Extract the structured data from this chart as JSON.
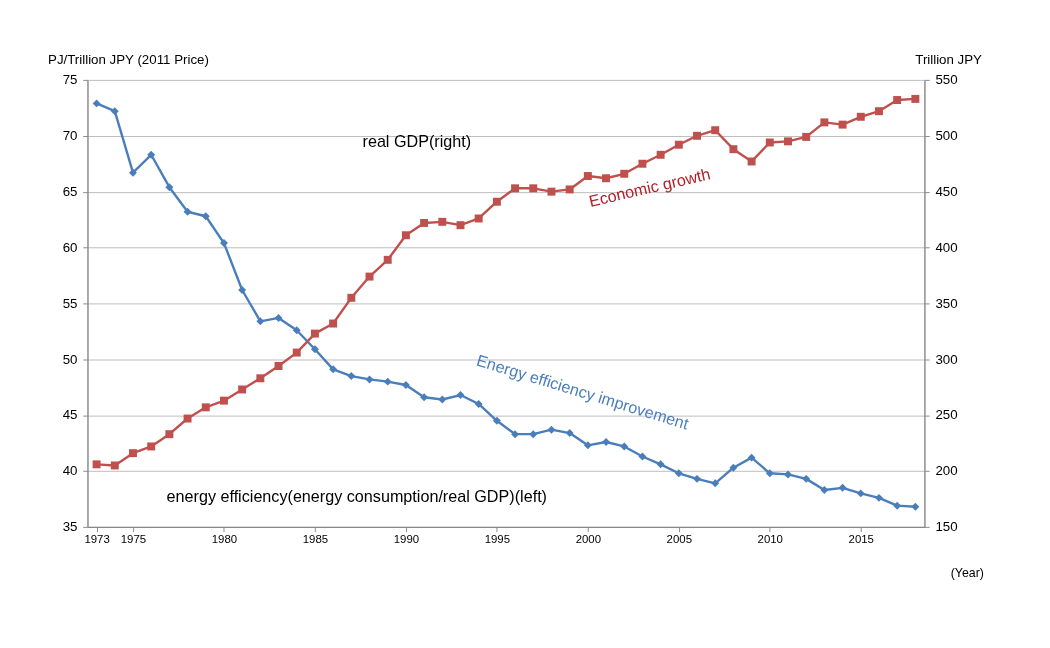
{
  "chart_data": {
    "type": "line",
    "ylabel": "PJ/Trillion JPY (2011 Price)",
    "y2label": "Trillion JPY",
    "xlabel": "(Year)",
    "x": [
      1973,
      1974,
      1975,
      1976,
      1977,
      1978,
      1979,
      1980,
      1981,
      1982,
      1983,
      1984,
      1985,
      1986,
      1987,
      1988,
      1989,
      1990,
      1991,
      1992,
      1993,
      1994,
      1995,
      1996,
      1997,
      1998,
      1999,
      2000,
      2001,
      2002,
      2003,
      2004,
      2005,
      2006,
      2007,
      2008,
      2009,
      2010,
      2011,
      2012,
      2013,
      2014,
      2015,
      2016,
      2017,
      2018
    ],
    "series": [
      {
        "color": "#4a7ebb",
        "marker": "diamond",
        "values": [
          72.9,
          72.2,
          66.7,
          68.3,
          65.4,
          63.2,
          62.8,
          60.4,
          56.2,
          53.4,
          53.7,
          52.6,
          50.9,
          49.1,
          48.5,
          48.2,
          48.0,
          47.7,
          46.6,
          46.4,
          46.8,
          46.0,
          44.5,
          43.3,
          43.3,
          43.7,
          43.4,
          42.3,
          42.6,
          42.2,
          41.3,
          40.6,
          39.8,
          39.3,
          38.9,
          40.3,
          41.2,
          39.8,
          39.7,
          39.3,
          38.3,
          38.5,
          38.0,
          37.6,
          36.9,
          36.8
        ]
      },
      {
        "color": "#c0504d",
        "marker": "square",
        "axis": "y2",
        "values": [
          206,
          205,
          216,
          222,
          233,
          247,
          257,
          263,
          273,
          283,
          294,
          306,
          323,
          332,
          355,
          374,
          389,
          411,
          422,
          423,
          420,
          426,
          441,
          453,
          453,
          450,
          452,
          464,
          462,
          466,
          475,
          483,
          492,
          500,
          505,
          488,
          477,
          494,
          495,
          499,
          512,
          510,
          517,
          522,
          532,
          533
        ]
      }
    ],
    "xlim": [
      1972.5,
      2018.5
    ],
    "xticks": [
      1973,
      1975,
      1980,
      1985,
      1990,
      1995,
      2000,
      2005,
      2010,
      2015
    ],
    "ylim": [
      35,
      75
    ],
    "yticks": [
      35,
      40,
      45,
      50,
      55,
      60,
      65,
      70,
      75
    ],
    "y2lim": [
      150,
      550
    ],
    "y2ticks": [
      150,
      200,
      250,
      300,
      350,
      400,
      450,
      500,
      550
    ],
    "annotations": [
      "real GDP(right)",
      "Economic growth",
      "Energy efficiency improvement",
      "energy efficiency(energy consumption/real GDP)(left)"
    ],
    "grid": "y"
  }
}
